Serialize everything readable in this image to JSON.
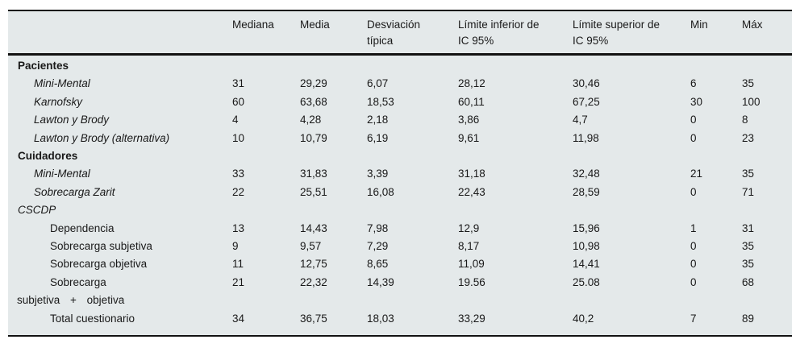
{
  "colors": {
    "table_background": "#e4e9ea",
    "rule": "#121212",
    "text": "#191919",
    "page_background": "#ffffff"
  },
  "table": {
    "columns": [
      {
        "l1": "",
        "l2": ""
      },
      {
        "l1": "Mediana",
        "l2": ""
      },
      {
        "l1": "Media",
        "l2": ""
      },
      {
        "l1": "Desviación",
        "l2": "típica"
      },
      {
        "l1": "Límite inferior de",
        "l2": "IC 95%"
      },
      {
        "l1": "Límite superior de",
        "l2": "IC 95%"
      },
      {
        "l1": "Min",
        "l2": ""
      },
      {
        "l1": "Máx",
        "l2": ""
      }
    ],
    "rows": [
      {
        "label": "Pacientes",
        "values": [
          "",
          "",
          "",
          "",
          "",
          "",
          ""
        ]
      },
      {
        "label": "Mini-Mental",
        "values": [
          "31",
          "29,29",
          "6,07",
          "28,12",
          "30,46",
          "6",
          "35"
        ]
      },
      {
        "label": "Karnofsky",
        "values": [
          "60",
          "63,68",
          "18,53",
          "60,11",
          "67,25",
          "30",
          "100"
        ]
      },
      {
        "label": "Lawton y Brody",
        "values": [
          "4",
          "4,28",
          "2,18",
          "3,86",
          "4,7",
          "0",
          "8"
        ]
      },
      {
        "label": "Lawton y Brody (alternativa)",
        "values": [
          "10",
          "10,79",
          "6,19",
          "9,61",
          "11,98",
          "0",
          "23"
        ]
      },
      {
        "label": "Cuidadores",
        "values": [
          "",
          "",
          "",
          "",
          "",
          "",
          ""
        ]
      },
      {
        "label": "Mini-Mental",
        "values": [
          "33",
          "31,83",
          "3,39",
          "31,18",
          "32,48",
          "21",
          "35"
        ]
      },
      {
        "label": "Sobrecarga Zarit",
        "values": [
          "22",
          "25,51",
          "16,08",
          "22,43",
          "28,59",
          "0",
          "71"
        ]
      },
      {
        "label": "CSCDP",
        "values": [
          "",
          "",
          "",
          "",
          "",
          "",
          ""
        ]
      },
      {
        "label": "Dependencia",
        "values": [
          "13",
          "14,43",
          "7,98",
          "12,9",
          "15,96",
          "1",
          "31"
        ]
      },
      {
        "label": "Sobrecarga subjetiva",
        "values": [
          "9",
          "9,57",
          "7,29",
          "8,17",
          "10,98",
          "0",
          "35"
        ]
      },
      {
        "label": "Sobrecarga objetiva",
        "values": [
          "11",
          "12,75",
          "8,65",
          "11,09",
          "14,41",
          "0",
          "35"
        ]
      },
      {
        "label": "Sobrecarga",
        "label2": "subjetiva + objetiva",
        "values": [
          "21",
          "22,32",
          "14,39",
          "19.56",
          "25.08",
          "0",
          "68"
        ]
      },
      {
        "label": "Total cuestionario",
        "values": [
          "34",
          "36,75",
          "18,03",
          "33,29",
          "40,2",
          "7",
          "89"
        ]
      }
    ]
  }
}
